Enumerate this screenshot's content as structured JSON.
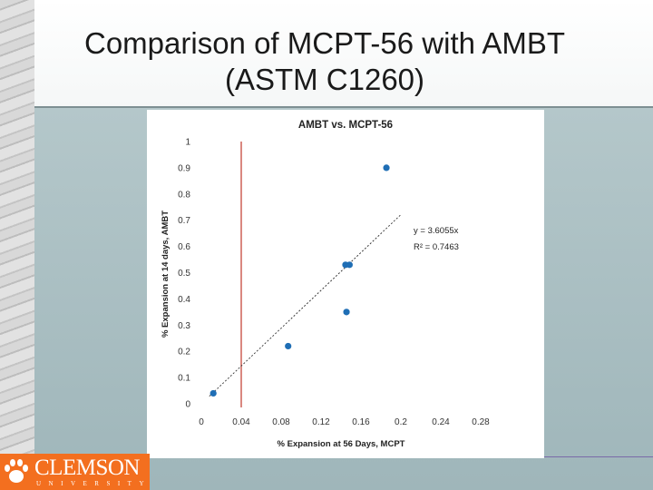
{
  "slide": {
    "title_line1": "Comparison of MCPT-56 with AMBT",
    "title_line2": "(ASTM C1260)"
  },
  "logo": {
    "name": "CLEMSON",
    "sub": "UNIVERSITY",
    "color": "#f36f1f"
  },
  "chart_data": {
    "type": "scatter",
    "title": "AMBT vs. MCPT-56",
    "xlabel": "% Expansion  at 56 Days, MCPT",
    "ylabel": "% Expansion  at 14 days, AMBT",
    "xlim": [
      0,
      0.28
    ],
    "ylim": [
      0,
      1
    ],
    "x_ticks": [
      "0",
      "0.04",
      "0.08",
      "0.12",
      "0.16",
      "0.2",
      "0.24",
      "0.28"
    ],
    "y_ticks": [
      "0",
      "0.1",
      "0.2",
      "0.3",
      "0.4",
      "0.5",
      "0.6",
      "0.7",
      "0.8",
      "0.9",
      "1"
    ],
    "grid": false,
    "points": [
      {
        "x": 0.012,
        "y": 0.04
      },
      {
        "x": 0.087,
        "y": 0.22
      },
      {
        "x": 0.1445,
        "y": 0.53
      },
      {
        "x": 0.1455,
        "y": 0.35
      },
      {
        "x": 0.1485,
        "y": 0.53
      },
      {
        "x": 0.1855,
        "y": 0.9
      }
    ],
    "trendline": {
      "slope": 3.6055,
      "x_range": [
        0.008,
        0.2
      ]
    },
    "equation": "y = 3.6055x",
    "r_squared": "R² = 0.7463",
    "limit_line_x": 0.04,
    "colors": {
      "points": "#1f6eb5",
      "limit_line": "#c0392b",
      "trendline": "#333333"
    }
  }
}
